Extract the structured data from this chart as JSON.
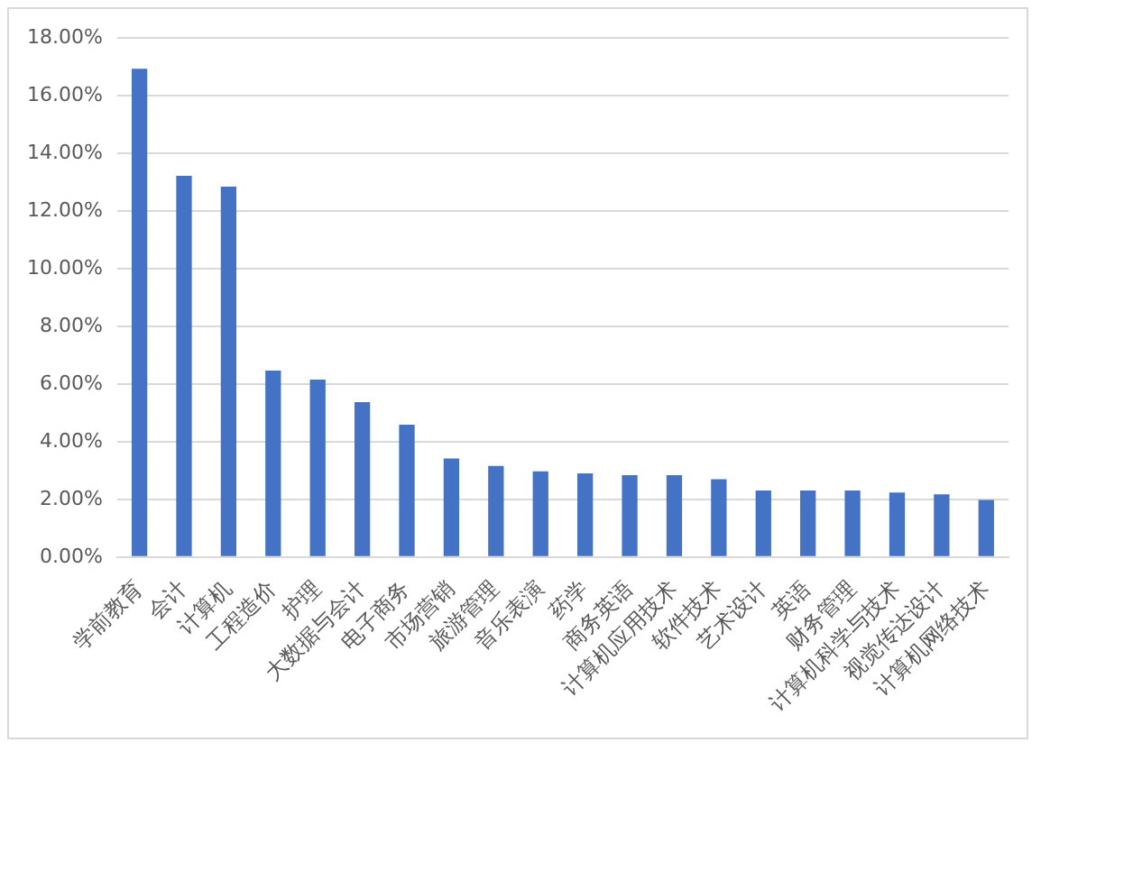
{
  "chart_data": {
    "type": "bar",
    "categories": [
      "学前教育",
      "会计",
      "计算机",
      "工程造价",
      "护理",
      "大数据与会计",
      "电子商务",
      "市场营销",
      "旅游管理",
      "音乐表演",
      "药学",
      "商务英语",
      "计算机应用技术",
      "软件技术",
      "艺术设计",
      "英语",
      "财务管理",
      "计算机科学与技术",
      "视觉传达设计",
      "计算机网络技术"
    ],
    "values": [
      16.93,
      13.22,
      12.84,
      6.47,
      6.15,
      5.37,
      4.59,
      3.42,
      3.16,
      2.97,
      2.9,
      2.84,
      2.84,
      2.7,
      2.31,
      2.31,
      2.31,
      2.24,
      2.18,
      1.98
    ],
    "color": "#4472c4",
    "ylim": [
      0,
      18
    ],
    "yticks": [
      {
        "value": 0,
        "label": "0.00%"
      },
      {
        "value": 2,
        "label": "2.00%"
      },
      {
        "value": 4,
        "label": "4.00%"
      },
      {
        "value": 6,
        "label": "6.00%"
      },
      {
        "value": 8,
        "label": "8.00%"
      },
      {
        "value": 10,
        "label": "10.00%"
      },
      {
        "value": 12,
        "label": "12.00%"
      },
      {
        "value": 14,
        "label": "14.00%"
      },
      {
        "value": 16,
        "label": "16.00%"
      },
      {
        "value": 18,
        "label": "18.00%"
      }
    ],
    "grid": "y",
    "legend": false
  }
}
